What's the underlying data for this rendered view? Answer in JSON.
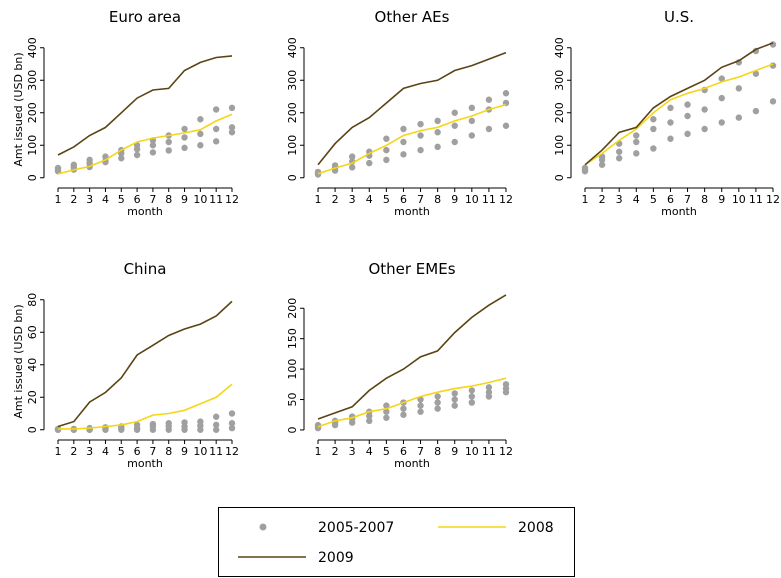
{
  "chart_data": {
    "type": "line",
    "xlabel": "month",
    "ylabel": "Amt issued (USD bn)",
    "x": [
      1,
      2,
      3,
      4,
      5,
      6,
      7,
      8,
      9,
      10,
      11,
      12
    ],
    "xtick_labels": [
      "1",
      "2",
      "3",
      "4",
      "5",
      "6",
      "7",
      "8",
      "9",
      "10",
      "11",
      "12"
    ],
    "legend": {
      "placement": "bottom-center",
      "items": [
        {
          "label": "2005-2007",
          "type": "points",
          "color": "#a0a0a0"
        },
        {
          "label": "2008",
          "type": "line",
          "color": "#f5d615"
        },
        {
          "label": "2009",
          "type": "line",
          "color": "#5a4414"
        }
      ]
    },
    "panels": [
      {
        "title": "Euro area",
        "ylim": [
          -10,
          430
        ],
        "yticks": [
          0,
          100,
          200,
          300,
          400
        ],
        "series": {
          "2005-2007": [
            [
              20,
              25,
              33,
              48,
              60,
              70,
              78,
              84,
              92,
              100,
              112,
              140
            ],
            [
              25,
              33,
              45,
              52,
              75,
              88,
              100,
              110,
              124,
              135,
              150,
              155
            ],
            [
              30,
              40,
              55,
              65,
              85,
              100,
              115,
              130,
              150,
              180,
              210,
              215
            ]
          ],
          "2008": [
            12,
            24,
            35,
            55,
            85,
            110,
            122,
            130,
            138,
            148,
            175,
            195
          ],
          "2009": [
            70,
            95,
            130,
            155,
            200,
            245,
            270,
            275,
            330,
            355,
            370,
            375
          ]
        }
      },
      {
        "title": "Other AEs",
        "ylim": [
          -10,
          430
        ],
        "yticks": [
          0,
          100,
          200,
          300,
          400
        ],
        "series": {
          "2005-2007": [
            [
              10,
              22,
              32,
              45,
              55,
              72,
              85,
              95,
              110,
              130,
              150,
              160
            ],
            [
              15,
              30,
              50,
              68,
              85,
              110,
              130,
              140,
              160,
              175,
              210,
              230
            ],
            [
              18,
              38,
              65,
              80,
              120,
              150,
              165,
              175,
              200,
              215,
              240,
              260
            ]
          ],
          "2008": [
            12,
            30,
            45,
            75,
            100,
            130,
            145,
            155,
            175,
            190,
            210,
            225
          ],
          "2009": [
            40,
            105,
            155,
            185,
            230,
            275,
            290,
            300,
            330,
            345,
            365,
            385
          ]
        }
      },
      {
        "title": "U.S.",
        "ylim": [
          -10,
          430
        ],
        "yticks": [
          0,
          100,
          200,
          300,
          400
        ],
        "series": {
          "2005-2007": [
            [
              20,
              40,
              60,
              75,
              90,
              120,
              135,
              150,
              170,
              185,
              205,
              235
            ],
            [
              25,
              55,
              80,
              110,
              150,
              170,
              190,
              210,
              245,
              275,
              320,
              345
            ],
            [
              30,
              65,
              105,
              130,
              180,
              215,
              225,
              270,
              305,
              355,
              390,
              410
            ]
          ],
          "2008": [
            40,
            75,
            115,
            150,
            200,
            240,
            260,
            275,
            295,
            310,
            330,
            350
          ],
          "2009": [
            40,
            85,
            140,
            155,
            215,
            250,
            275,
            300,
            340,
            360,
            395,
            415
          ]
        }
      },
      {
        "title": "China",
        "ylim": [
          -2,
          86
        ],
        "yticks": [
          0,
          20,
          40,
          60,
          80
        ],
        "series": {
          "2005-2007": [
            [
              0,
              0,
              0,
              0,
              0,
              0,
              0,
              0,
              0,
              0,
              0,
              1
            ],
            [
              0,
              0,
              0,
              0.5,
              1,
              1,
              2,
              2,
              2,
              2.5,
              3,
              4
            ],
            [
              0.5,
              0.5,
              1,
              1.5,
              2,
              3,
              3.5,
              4,
              4.5,
              5,
              8,
              10
            ]
          ],
          "2008": [
            0.5,
            0.5,
            1,
            2,
            3,
            5,
            9,
            10,
            12,
            16,
            20,
            28
          ],
          "2009": [
            2,
            5,
            17,
            23,
            32,
            46,
            52,
            58,
            62,
            65,
            70,
            79
          ]
        }
      },
      {
        "title": "Other EMEs",
        "ylim": [
          -5,
          230
        ],
        "yticks": [
          0,
          50,
          100,
          150,
          200
        ],
        "series": {
          "2005-2007": [
            [
              3,
              8,
              12,
              15,
              20,
              25,
              30,
              35,
              40,
              45,
              55,
              62
            ],
            [
              5,
              12,
              18,
              23,
              30,
              35,
              40,
              45,
              50,
              55,
              62,
              68
            ],
            [
              8,
              15,
              22,
              30,
              40,
              45,
              50,
              55,
              60,
              65,
              70,
              75
            ]
          ],
          "2008": [
            5,
            15,
            20,
            30,
            35,
            45,
            55,
            62,
            68,
            72,
            78,
            85
          ],
          "2009": [
            18,
            28,
            38,
            65,
            85,
            100,
            120,
            130,
            160,
            185,
            205,
            222
          ]
        }
      }
    ]
  }
}
